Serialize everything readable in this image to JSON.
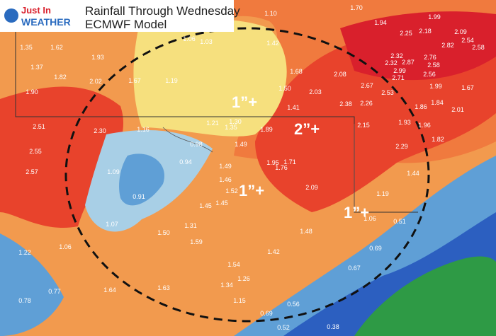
{
  "header": {
    "logo_top": "Just In",
    "logo_bottom": "WEATHER",
    "title": "Rainfall Through Wednesday",
    "subtitle": "ECMWF Model"
  },
  "callouts": [
    "1”+",
    "2”+",
    "1”+",
    "1”+"
  ],
  "amounts": [
    "1.10",
    "1.70",
    "1.99",
    "1.94",
    "2.18",
    "2.25",
    "2.09",
    "2.54",
    "2.58",
    "2.82",
    "2.76",
    "2.32",
    "2.32",
    "2.87",
    "2.58",
    "2.99",
    "2.56",
    "2.71",
    "2.08",
    "2.67",
    "2.03",
    "2.53",
    "1.99",
    "1.67",
    "2.38",
    "2.26",
    "1.86",
    "1.84",
    "2.01",
    "1.93",
    "1.96",
    "2.15",
    "1.82",
    "2.29",
    "1.44",
    "1.19",
    "1.06",
    "0.51",
    "1.35",
    "1.62",
    "1.37",
    "1.93",
    "1.82",
    "2.02",
    "1.67",
    "1.90",
    "1.19",
    "1.42",
    "1.68",
    "1.50",
    "1.41",
    "1.06",
    "1.03",
    "2.51",
    "2.30",
    "1.16",
    "1.21",
    "1.30",
    "1.35",
    "1.89",
    "0.98",
    "1.49",
    "2.55",
    "0.94",
    "1.95",
    "1.71",
    "1.76",
    "2.57",
    "1.09",
    "1.49",
    "1.46",
    "1.52",
    "0.91",
    "1.45",
    "1.45",
    "2.09",
    "1.07",
    "1.50",
    "1.31",
    "1.22",
    "1.06",
    "1.59",
    "1.42",
    "1.54",
    "1.64",
    "1.63",
    "1.34",
    "1.26",
    "0.78",
    "0.77",
    "0.69",
    "0.67",
    "0.56",
    "0.69",
    "0.52",
    "0.38",
    "1.15",
    "1.48"
  ]
}
